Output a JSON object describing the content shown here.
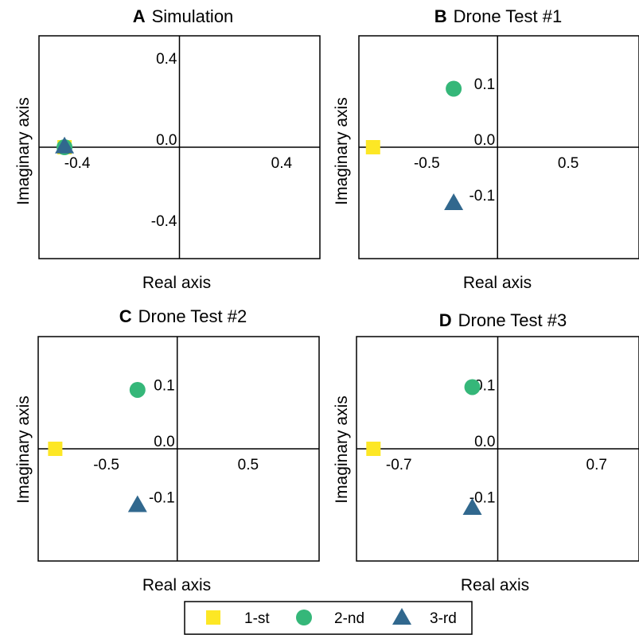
{
  "markers": {
    "1-st": {
      "shape": "square",
      "color": "#FDE725"
    },
    "2-nd": {
      "shape": "circle",
      "color": "#35B779"
    },
    "3-rd": {
      "shape": "triangle",
      "color": "#31688E"
    }
  },
  "legend": {
    "items": [
      {
        "key": "1-st",
        "label": "1-st"
      },
      {
        "key": "2-nd",
        "label": "2-nd"
      },
      {
        "key": "3-rd",
        "label": "3-rd"
      }
    ]
  },
  "chart_data": [
    {
      "type": "scatter",
      "letter": "A",
      "title": "Simulation",
      "xlabel": "Real axis",
      "ylabel": "Imaginary axis",
      "xlim": [
        -0.55,
        0.55
      ],
      "ylim": [
        -0.55,
        0.55
      ],
      "xticks": [
        {
          "value": -0.4,
          "label": "-0.4"
        },
        {
          "value": 0.4,
          "label": "0.4"
        }
      ],
      "yticks": [
        {
          "value": 0.4,
          "label": "0.4"
        },
        {
          "value": 0.0,
          "label": "0.0"
        },
        {
          "value": -0.4,
          "label": "-0.4"
        }
      ],
      "series": [
        {
          "key": "1-st",
          "x": [
            -0.45
          ],
          "y": [
            0.0
          ]
        },
        {
          "key": "2-nd",
          "x": [
            -0.45
          ],
          "y": [
            0.0
          ]
        },
        {
          "key": "3-rd",
          "x": [
            -0.45
          ],
          "y": [
            0.005
          ]
        }
      ]
    },
    {
      "type": "scatter",
      "letter": "B",
      "title": "Drone Test #1",
      "xlabel": "Real axis",
      "ylabel": "Imaginary axis",
      "xlim": [
        -0.98,
        1.0
      ],
      "ylim": [
        -0.2,
        0.2
      ],
      "xticks": [
        {
          "value": -0.5,
          "label": "-0.5"
        },
        {
          "value": 0.5,
          "label": "0.5"
        }
      ],
      "yticks": [
        {
          "value": 0.1,
          "label": "0.1"
        },
        {
          "value": 0.0,
          "label": "0.0"
        },
        {
          "value": -0.1,
          "label": "-0.1"
        }
      ],
      "series": [
        {
          "key": "1-st",
          "x": [
            -0.88
          ],
          "y": [
            0.0
          ]
        },
        {
          "key": "2-nd",
          "x": [
            -0.31
          ],
          "y": [
            0.105
          ]
        },
        {
          "key": "3-rd",
          "x": [
            -0.31
          ],
          "y": [
            -0.1
          ]
        }
      ]
    },
    {
      "type": "scatter",
      "letter": "C",
      "title": "Drone Test #2",
      "xlabel": "Real axis",
      "ylabel": "Imaginary axis",
      "xlim": [
        -0.98,
        1.0
      ],
      "ylim": [
        -0.2,
        0.2
      ],
      "xticks": [
        {
          "value": -0.5,
          "label": "-0.5"
        },
        {
          "value": 0.5,
          "label": "0.5"
        }
      ],
      "yticks": [
        {
          "value": 0.1,
          "label": "0.1"
        },
        {
          "value": 0.0,
          "label": "0.0"
        },
        {
          "value": -0.1,
          "label": "-0.1"
        }
      ],
      "series": [
        {
          "key": "1-st",
          "x": [
            -0.86
          ],
          "y": [
            0.0
          ]
        },
        {
          "key": "2-nd",
          "x": [
            -0.28
          ],
          "y": [
            0.105
          ]
        },
        {
          "key": "3-rd",
          "x": [
            -0.28
          ],
          "y": [
            -0.1
          ]
        }
      ]
    },
    {
      "type": "scatter",
      "letter": "D",
      "title": "Drone Test #3",
      "xlabel": "Real axis",
      "ylabel": "Imaginary axis",
      "xlim": [
        -1.0,
        1.0
      ],
      "ylim": [
        -0.2,
        0.2
      ],
      "xticks": [
        {
          "value": -0.7,
          "label": "-0.7"
        },
        {
          "value": 0.7,
          "label": "0.7"
        }
      ],
      "yticks": [
        {
          "value": 0.1,
          "label": "0.1"
        },
        {
          "value": 0.0,
          "label": "0.0"
        },
        {
          "value": -0.1,
          "label": "-0.1"
        }
      ],
      "series": [
        {
          "key": "1-st",
          "x": [
            -0.88
          ],
          "y": [
            0.0
          ]
        },
        {
          "key": "2-nd",
          "x": [
            -0.18
          ],
          "y": [
            0.11
          ]
        },
        {
          "key": "3-rd",
          "x": [
            -0.18
          ],
          "y": [
            -0.105
          ]
        }
      ]
    }
  ]
}
